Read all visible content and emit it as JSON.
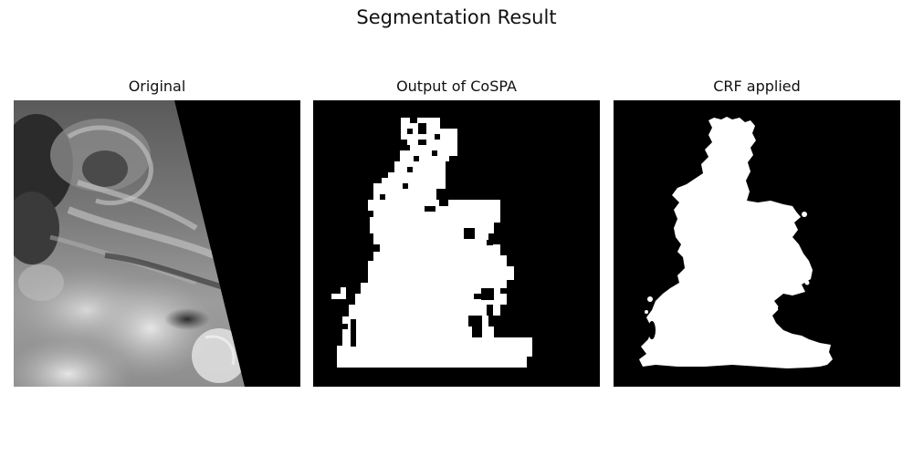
{
  "figure": {
    "title": "Segmentation Result"
  },
  "panels": [
    {
      "title": "Original"
    },
    {
      "title": "Output of CoSPA"
    },
    {
      "title": "CRF applied"
    }
  ],
  "colors": {
    "background": "#000000",
    "mask": "#ffffff"
  }
}
